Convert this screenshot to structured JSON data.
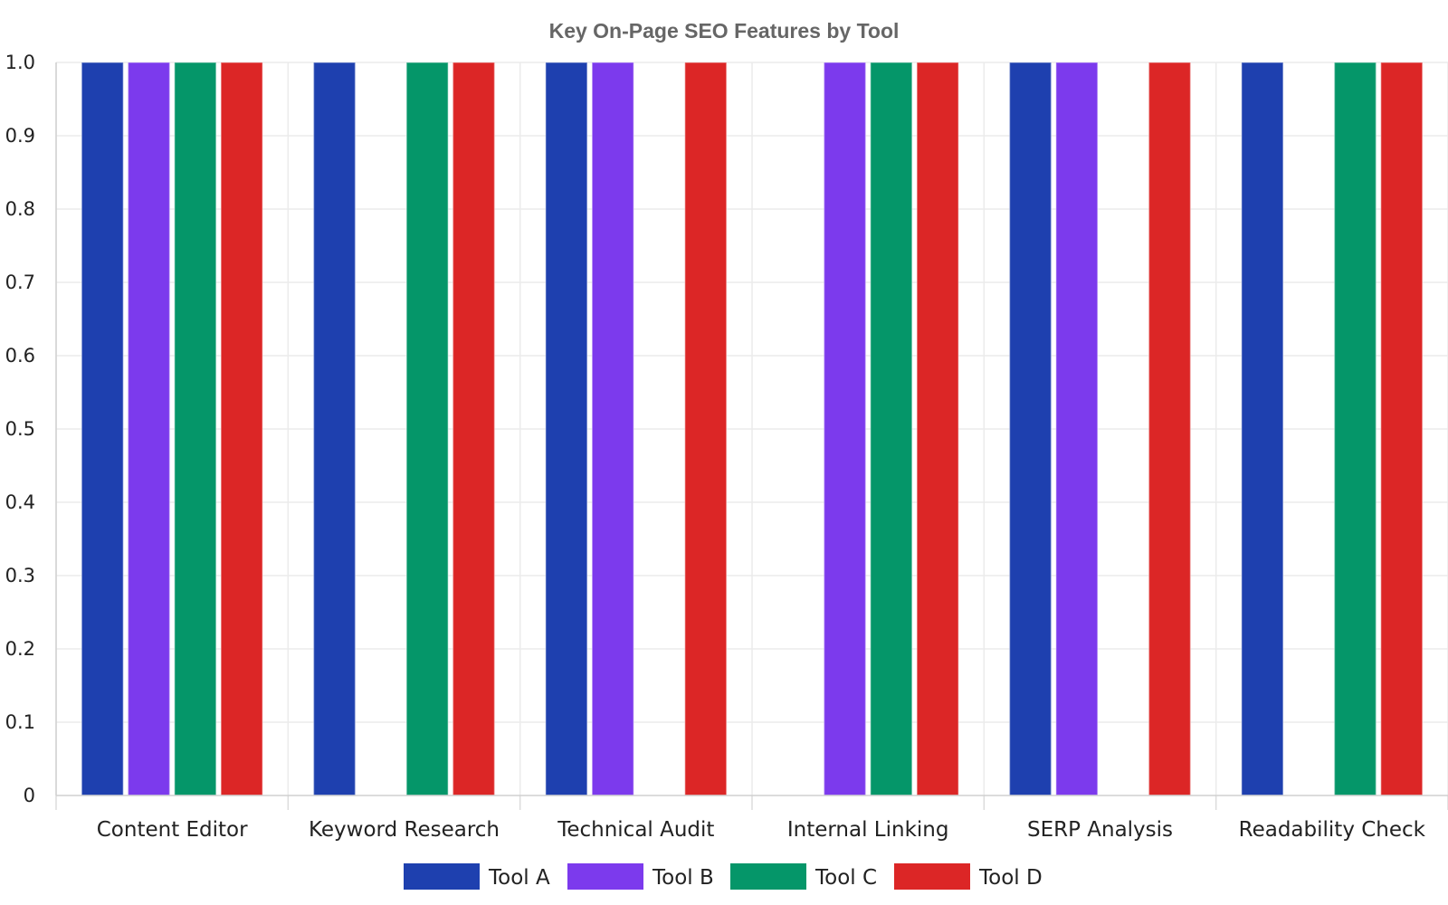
{
  "chart_data": {
    "type": "bar",
    "title": "Key On-Page SEO Features by Tool",
    "xlabel": "",
    "ylabel": "",
    "ylim": [
      0,
      1
    ],
    "yticks": [
      "0",
      "0.1",
      "0.2",
      "0.3",
      "0.4",
      "0.5",
      "0.6",
      "0.7",
      "0.8",
      "0.9",
      "1.0"
    ],
    "categories": [
      "Content Editor",
      "Keyword Research",
      "Technical Audit",
      "Internal Linking",
      "SERP Analysis",
      "Readability Check"
    ],
    "series": [
      {
        "name": "Tool A",
        "color": "#1e40af",
        "values": [
          1,
          1,
          1,
          0,
          1,
          1
        ]
      },
      {
        "name": "Tool B",
        "color": "#7c3aed",
        "values": [
          1,
          0,
          1,
          1,
          1,
          0
        ]
      },
      {
        "name": "Tool C",
        "color": "#059669",
        "values": [
          1,
          1,
          0,
          1,
          0,
          1
        ]
      },
      {
        "name": "Tool D",
        "color": "#dc2626",
        "values": [
          1,
          1,
          1,
          1,
          1,
          1
        ]
      }
    ],
    "grid": true,
    "legend_position": "bottom-center"
  }
}
